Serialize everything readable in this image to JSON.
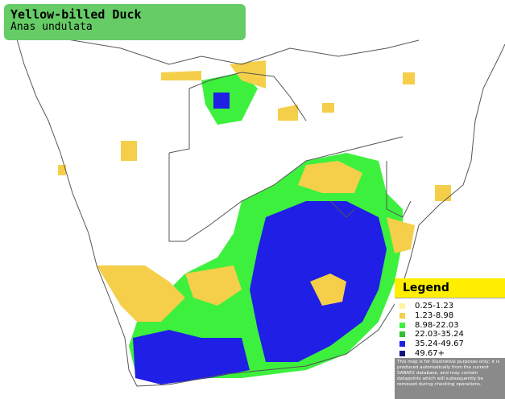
{
  "header": {
    "title": "Yellow-billed Duck",
    "subtitle": "Anas undulata"
  },
  "legend": {
    "title": "Legend",
    "items": [
      {
        "label": "0.25-1.23",
        "color": "#fff59a"
      },
      {
        "label": "1.23-8.98",
        "color": "#f5cf4a"
      },
      {
        "label": "8.98-22.03",
        "color": "#3df03d"
      },
      {
        "label": "22.03-35.24",
        "color": "#2fbf2f"
      },
      {
        "label": "35.24-49.67",
        "color": "#1f1fe6"
      },
      {
        "label": "49.67+",
        "color": "#12127f"
      }
    ],
    "note": "This map is for illustrative purposes only; it is produced automatically from the current SABAP2 database, and may contain datapoints which will subsequently be removed during checking operations."
  }
}
